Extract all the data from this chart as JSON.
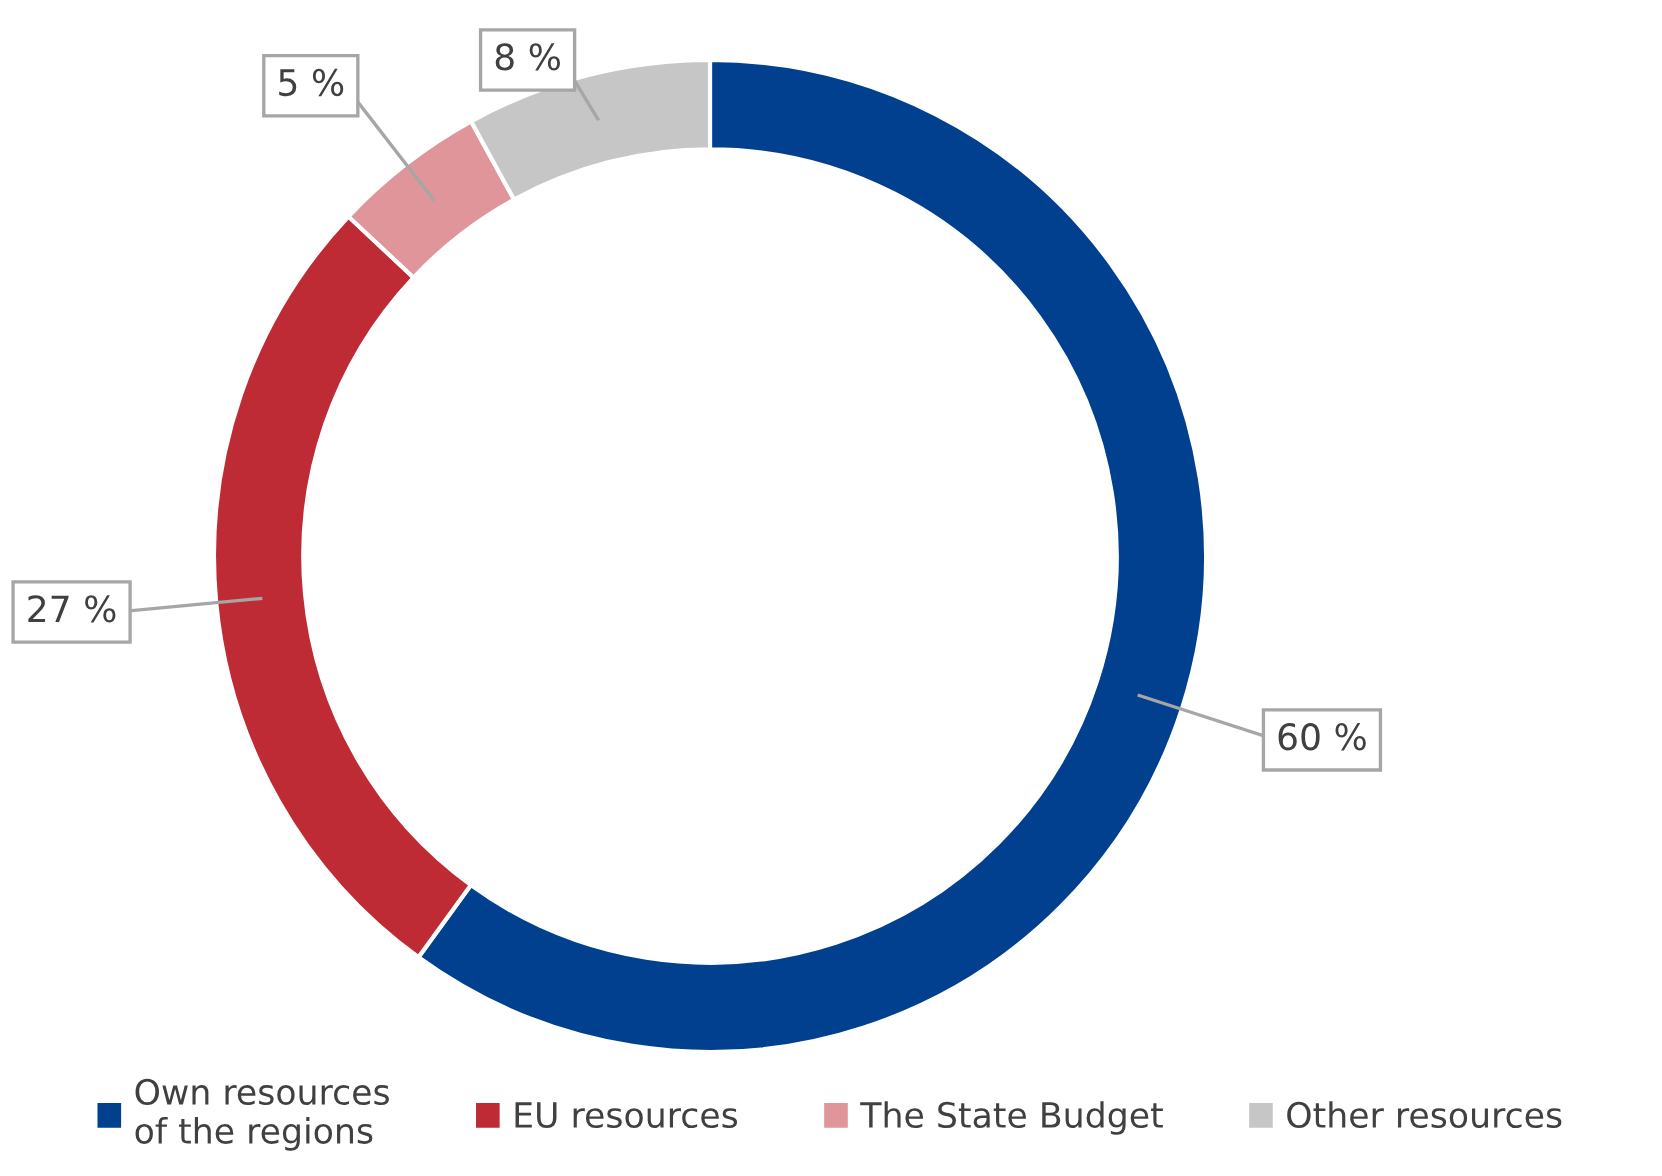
{
  "chart_data": {
    "type": "donut",
    "categories": [
      "Own resources\nof the regions",
      "EU resources",
      "The State Budget",
      "Other resources"
    ],
    "values": [
      60,
      27,
      5,
      8
    ],
    "colors": [
      "#00408f",
      "#be2b35",
      "#e0959b",
      "#c6c6c6"
    ],
    "value_labels": [
      "60 %",
      "27 %",
      "5 %",
      "8 %"
    ],
    "legend": "bottom"
  }
}
